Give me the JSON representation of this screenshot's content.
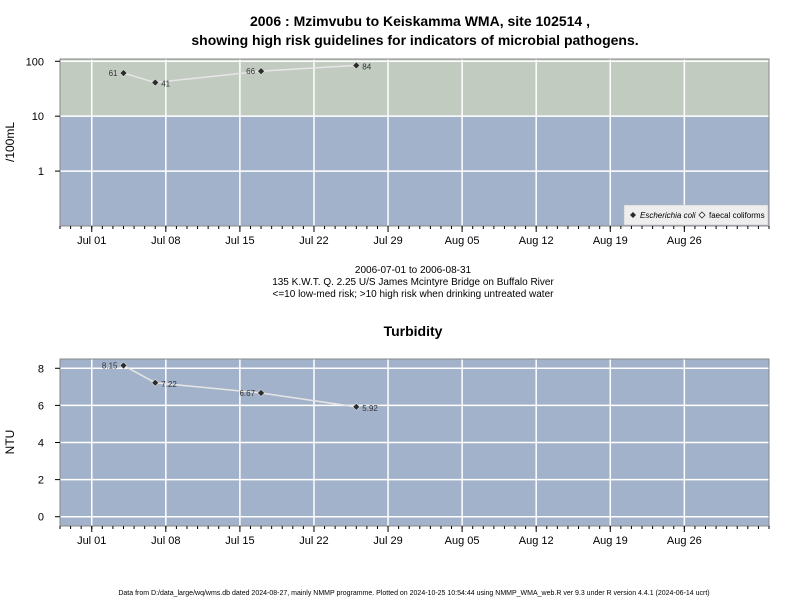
{
  "colors": {
    "high_risk_band": "#c1cbc0",
    "low_risk_band": "#a2b2ca",
    "turbidity_bg": "#a2b2ca",
    "grid": "#ffffff",
    "line": "#e6e6e6",
    "point": "#2b2b2b"
  },
  "chart_data": [
    {
      "type": "line",
      "title_line1": "2006 : Mzimvubu to Keiskamma WMA, site 102514 ,",
      "title_line2": "showing high risk guidelines for indicators of microbial pathogens.",
      "ylabel": "/100mL",
      "y_scale": "log",
      "ylim": [
        0.1,
        110
      ],
      "yticks": [
        1,
        10,
        100
      ],
      "ytick_labels": [
        "1",
        "10",
        "100"
      ],
      "xlim": [
        "2006-06-28",
        "2006-09-03"
      ],
      "xticks": [
        "2006-07-01",
        "2006-07-08",
        "2006-07-15",
        "2006-07-22",
        "2006-07-29",
        "2006-08-05",
        "2006-08-12",
        "2006-08-19",
        "2006-08-26"
      ],
      "xtick_labels": [
        "Jul 01",
        "Jul 08",
        "Jul 15",
        "Jul 22",
        "Jul 29",
        "Aug 05",
        "Aug 12",
        "Aug 19",
        "Aug 26"
      ],
      "bands": [
        {
          "from": 10,
          "to": 110,
          "meaning": "high risk"
        },
        {
          "from": 0.1,
          "to": 10,
          "meaning": "low-med risk"
        }
      ],
      "series": [
        {
          "name": "Escherichia coli",
          "x": [
            "2006-07-04",
            "2006-07-07",
            "2006-07-17",
            "2006-07-26"
          ],
          "y": [
            61,
            41,
            66,
            84
          ],
          "labels": [
            "61",
            "41",
            "66",
            "84"
          ]
        }
      ],
      "legend": {
        "position": "bottom-right",
        "items": [
          {
            "label": "Escherichia coli",
            "marker": "filled-diamond",
            "italic": true
          },
          {
            "label": "faecal coliforms",
            "marker": "open-diamond",
            "italic": false
          }
        ]
      },
      "notes": [
        "2006-07-01 to 2006-08-31",
        "135 K.W.T. Q. 2.25 U/S James Mcintyre Bridge on Buffalo River",
        "<=10 low-med risk; >10 high risk when drinking untreated water"
      ]
    },
    {
      "type": "line",
      "title": "Turbidity",
      "ylabel": "NTU",
      "ylim": [
        -0.5,
        8.5
      ],
      "yticks": [
        0,
        2,
        4,
        6,
        8
      ],
      "ytick_labels": [
        "0",
        "2",
        "4",
        "6",
        "8"
      ],
      "xlim": [
        "2006-06-28",
        "2006-09-03"
      ],
      "xticks": [
        "2006-07-01",
        "2006-07-08",
        "2006-07-15",
        "2006-07-22",
        "2006-07-29",
        "2006-08-05",
        "2006-08-12",
        "2006-08-19",
        "2006-08-26"
      ],
      "xtick_labels": [
        "Jul 01",
        "Jul 08",
        "Jul 15",
        "Jul 22",
        "Jul 29",
        "Aug 05",
        "Aug 12",
        "Aug 19",
        "Aug 26"
      ],
      "series": [
        {
          "x": [
            "2006-07-04",
            "2006-07-07",
            "2006-07-17",
            "2006-07-26"
          ],
          "y": [
            8.15,
            7.22,
            6.67,
            5.92
          ],
          "labels": [
            "8.15",
            "7.22",
            "6.67",
            "5.92"
          ]
        }
      ]
    }
  ],
  "footer": "Data from D:/data_large/wq/wms.db dated 2024-08-27, mainly NMMP programme. Plotted on 2024-10-25 10:54:44 using NMMP_WMA_web.R ver 9.3 under R version 4.4.1 (2024-06-14 ucrt)"
}
